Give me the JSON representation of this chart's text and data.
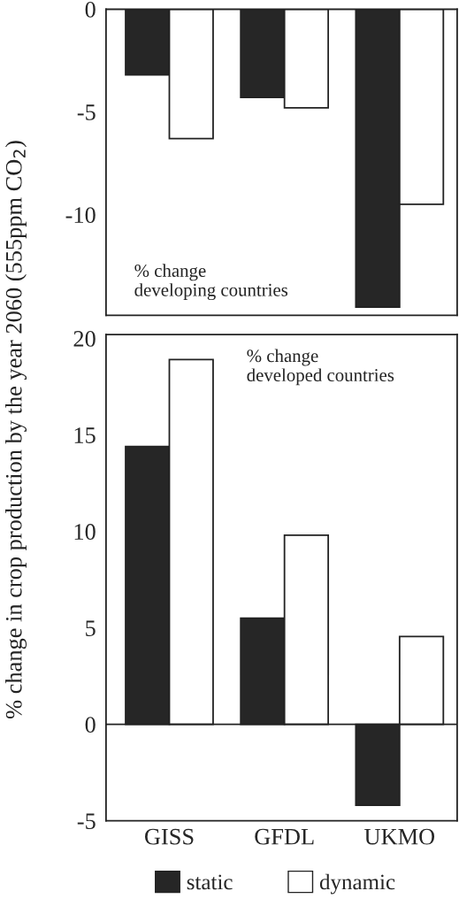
{
  "chart_data": [
    {
      "type": "bar",
      "categories": [
        null,
        null,
        null
      ],
      "ylim": [
        -14.9,
        0
      ],
      "yticks": [
        0,
        -5,
        -10
      ],
      "tick_labels": "y",
      "legend": "bottom",
      "annotations": [
        "% change\ndeveloping countries"
      ],
      "series": [
        {
          "name": "static",
          "color": "#262626",
          "values": [
            -3.2,
            -4.3,
            -14.5
          ]
        },
        {
          "name": "dynamic",
          "color": "#ffffff",
          "values": [
            -6.3,
            -4.8,
            -9.5
          ]
        }
      ]
    },
    {
      "type": "bar",
      "categories": [
        "GISS",
        "GFDL",
        "UKMO"
      ],
      "ylim": [
        -5,
        20.2
      ],
      "yticks": [
        20,
        15,
        10,
        5,
        0,
        -5
      ],
      "ylabel": "% change in crop production by the year 2060 (555ppm CO$_{2}$)",
      "annotations": [
        "% change\ndeveloped countries"
      ],
      "series": [
        {
          "color": "#262626",
          "values": [
            14.4,
            5.5,
            -4.2
          ]
        },
        {
          "color": "#ffffff",
          "values": [
            18.9,
            9.8,
            4.55
          ]
        }
      ]
    }
  ]
}
